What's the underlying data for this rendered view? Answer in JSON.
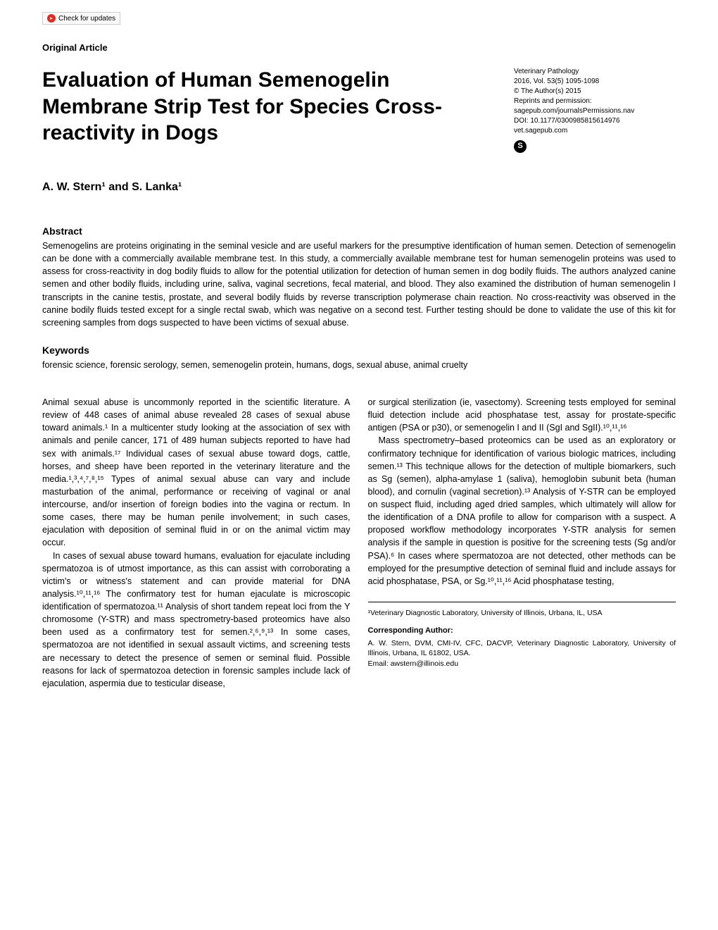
{
  "check_updates_label": "Check for updates",
  "article_type": "Original Article",
  "title": "Evaluation of Human Semenogelin Membrane Strip Test for Species Cross-reactivity in Dogs",
  "journal": {
    "name": "Veterinary Pathology",
    "issue": "2016, Vol. 53(5) 1095-1098",
    "copyright": "© The Author(s) 2015",
    "reprints": "Reprints and permission:",
    "permissions_url": "sagepub.com/journalsPermissions.nav",
    "doi": "DOI: 10.1177/0300985815614976",
    "url": "vet.sagepub.com",
    "sage_glyph": "S"
  },
  "authors": "A. W. Stern¹ and S. Lanka¹",
  "abstract_heading": "Abstract",
  "abstract_text": "Semenogelins are proteins originating in the seminal vesicle and are useful markers for the presumptive identification of human semen. Detection of semenogelin can be done with a commercially available membrane test. In this study, a commercially available membrane test for human semenogelin proteins was used to assess for cross-reactivity in dog bodily fluids to allow for the potential utilization for detection of human semen in dog bodily fluids. The authors analyzed canine semen and other bodily fluids, including urine, saliva, vaginal secretions, fecal material, and blood. They also examined the distribution of human semenogelin I transcripts in the canine testis, prostate, and several bodily fluids by reverse transcription polymerase chain reaction. No cross-reactivity was observed in the canine bodily fluids tested except for a single rectal swab, which was negative on a second test. Further testing should be done to validate the use of this kit for screening samples from dogs suspected to have been victims of sexual abuse.",
  "keywords_heading": "Keywords",
  "keywords_text": "forensic science, forensic serology, semen, semenogelin protein, humans, dogs, sexual abuse, animal cruelty",
  "body": {
    "left": {
      "p1": "Animal sexual abuse is uncommonly reported in the scientific literature. A review of 448 cases of animal abuse revealed 28 cases of sexual abuse toward animals.¹ In a multicenter study looking at the association of sex with animals and penile cancer, 171 of 489 human subjects reported to have had sex with animals.¹⁷ Individual cases of sexual abuse toward dogs, cattle, horses, and sheep have been reported in the veterinary literature and the media.¹,³,⁴,⁷,⁸,¹⁵ Types of animal sexual abuse can vary and include masturbation of the animal, performance or receiving of vaginal or anal intercourse, and/or insertion of foreign bodies into the vagina or rectum. In some cases, there may be human penile involvement; in such cases, ejaculation with deposition of seminal fluid in or on the animal victim may occur.",
      "p2": "In cases of sexual abuse toward humans, evaluation for ejaculate including spermatozoa is of utmost importance, as this can assist with corroborating a victim's or witness's statement and can provide material for DNA analysis.¹⁰,¹¹,¹⁶ The confirmatory test for human ejaculate is microscopic identification of spermatozoa.¹¹ Analysis of short tandem repeat loci from the Y chromosome (Y-STR) and mass spectrometry-based proteomics have also been used as a confirmatory test for semen.²,⁶,⁹,¹³ In some cases, spermatozoa are not identified in sexual assault victims, and screening tests are necessary to detect the presence of semen or seminal fluid. Possible reasons for lack of spermatozoa detection in forensic samples include lack of ejaculation, aspermia due to testicular disease,"
    },
    "right": {
      "p1": "or surgical sterilization (ie, vasectomy). Screening tests employed for seminal fluid detection include acid phosphatase test, assay for prostate-specific antigen (PSA or p30), or semenogelin I and II (SgI and SgII).¹⁰,¹¹,¹⁶",
      "p2": "Mass spectrometry–based proteomics can be used as an exploratory or confirmatory technique for identification of various biologic matrices, including semen.¹³ This technique allows for the detection of multiple biomarkers, such as Sg (semen), alpha-amylase 1 (saliva), hemoglobin subunit beta (human blood), and cornulin (vaginal secretion).¹³ Analysis of Y-STR can be employed on suspect fluid, including aged dried samples, which ultimately will allow for the identification of a DNA profile to allow for comparison with a suspect. A proposed workflow methodology incorporates Y-STR analysis for semen analysis if the sample in question is positive for the screening tests (Sg and/or PSA).⁶ In cases where spermatozoa are not detected, other methods can be employed for the presumptive detection of seminal fluid and include assays for acid phosphatase, PSA, or Sg.¹⁰,¹¹,¹⁶ Acid phosphatase testing,"
    }
  },
  "affiliation": "¹Veterinary Diagnostic Laboratory, University of Illinois, Urbana, IL, USA",
  "corr_heading": "Corresponding Author:",
  "corr_text": "A. W. Stern, DVM, CMI-IV, CFC, DACVP, Veterinary Diagnostic Laboratory, University of Illinois, Urbana, IL 61802, USA.",
  "corr_email": "Email: awstern@illinois.edu"
}
